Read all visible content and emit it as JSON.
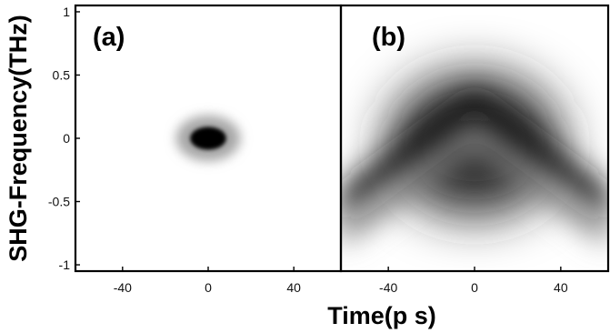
{
  "chart_data": {
    "type": "heatmap",
    "description_kind": "FROG spectrogram panels (grayscale intensity)",
    "ylabel": "SHG-Frequency(THz)",
    "xlabel": "Time(p s)",
    "ylim": [
      -1.05,
      1.05
    ],
    "xlim": [
      -62,
      62
    ],
    "y_ticks": [
      1,
      0.5,
      0,
      -0.5,
      -1
    ],
    "y_tick_labels": [
      "1",
      "0.5",
      "0",
      "-0.5",
      "-1"
    ],
    "x_ticks": [
      -40,
      0,
      40
    ],
    "x_tick_labels": [
      "-40",
      "0",
      "40"
    ],
    "colormap": "grayscale (white = 0, black = max)",
    "panels": [
      {
        "label": "(a)",
        "features": [
          {
            "kind": "gaussian-spot",
            "center_t": 0,
            "center_f": 0,
            "sigma_t": 4.2,
            "sigma_f": 0.045,
            "peak": 1.0
          },
          {
            "kind": "gaussian-spot",
            "center_t": 0,
            "center_f": 0,
            "sigma_t": 7.5,
            "sigma_f": 0.09,
            "peak": 0.35
          }
        ]
      },
      {
        "label": "(b)",
        "features": [
          {
            "kind": "chevron",
            "apex_f": 0.38,
            "slope_per_ps": 0.0125,
            "band_width_f": 0.28,
            "extent_t": 62,
            "peak": 0.9
          },
          {
            "kind": "chevron",
            "apex_f": 0.12,
            "slope_per_ps": 0.0125,
            "band_width_f": 0.2,
            "extent_t": 62,
            "peak": 0.45
          },
          {
            "kind": "gaussian-spot",
            "center_t": 0,
            "center_f": -0.05,
            "sigma_t": 20,
            "sigma_f": 0.28,
            "peak": 0.85
          }
        ]
      }
    ]
  }
}
